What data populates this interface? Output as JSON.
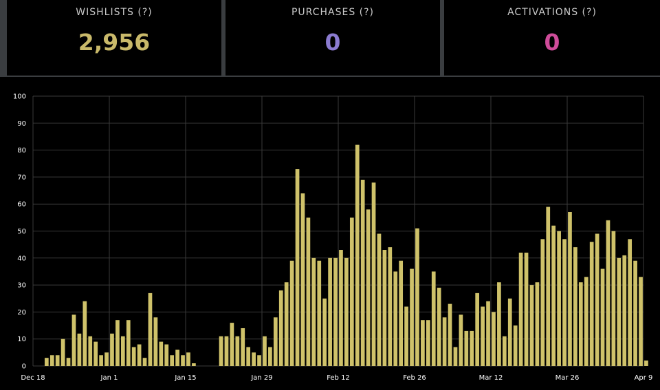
{
  "stats": {
    "wishlists": {
      "label": "WISHLISTS (?)",
      "value": "2,956"
    },
    "purchases": {
      "label": "PURCHASES (?)",
      "value": "0"
    },
    "activations": {
      "label": "ACTIVATIONS (?)",
      "value": "0"
    }
  },
  "colors": {
    "wishlists_value": "#c9b96a",
    "purchases_value": "#8b7bd0",
    "activations_value": "#cf4c9a",
    "bar_fill": "#cfc26a",
    "grid": "#3a3a3a"
  },
  "chart_data": {
    "type": "bar",
    "ylim": [
      0,
      100
    ],
    "y_ticks": [
      0,
      10,
      20,
      30,
      40,
      50,
      60,
      70,
      80,
      90,
      100
    ],
    "x_ticks": [
      "Dec 18",
      "Jan 1",
      "Jan 15",
      "Jan 29",
      "Feb 12",
      "Feb 26",
      "Mar 12",
      "Mar 26",
      "Apr 9"
    ],
    "start_date": "Dec 18",
    "values": [
      0,
      0,
      3,
      4,
      4,
      10,
      3,
      19,
      12,
      24,
      11,
      9,
      4,
      5,
      12,
      17,
      11,
      17,
      7,
      8,
      3,
      27,
      18,
      9,
      8,
      4,
      6,
      4,
      5,
      1,
      0,
      0,
      0,
      0,
      11,
      11,
      16,
      11,
      14,
      7,
      5,
      4,
      11,
      7,
      18,
      28,
      31,
      39,
      73,
      64,
      55,
      40,
      39,
      25,
      40,
      40,
      43,
      40,
      55,
      82,
      69,
      58,
      68,
      49,
      43,
      44,
      35,
      39,
      22,
      36,
      51,
      17,
      17,
      35,
      29,
      18,
      23,
      7,
      19,
      13,
      13,
      27,
      22,
      24,
      20,
      31,
      11,
      25,
      15,
      42,
      42,
      30,
      31,
      47,
      59,
      52,
      50,
      47,
      57,
      44,
      31,
      33,
      46,
      49,
      36,
      54,
      50,
      40,
      41,
      47,
      39,
      33,
      2
    ]
  }
}
